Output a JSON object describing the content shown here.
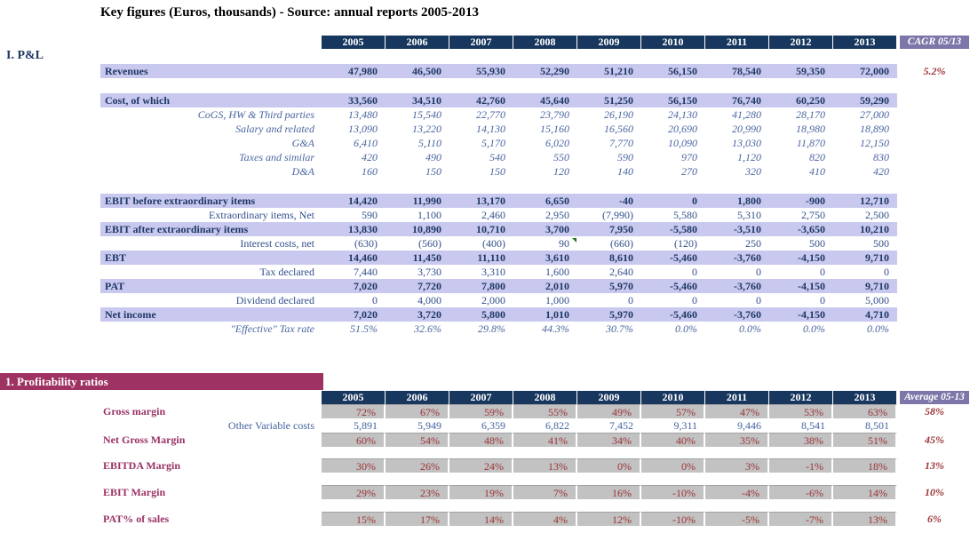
{
  "title": "Key figures (Euros, thousands) - Source: annual reports 2005-2013",
  "pnl": {
    "section_label": "I. P&L",
    "years": [
      "2005",
      "2006",
      "2007",
      "2008",
      "2009",
      "2010",
      "2011",
      "2012",
      "2013"
    ],
    "cagr_header": "CAGR 05/13",
    "rows": [
      {
        "type": "spacer",
        "h": 17
      },
      {
        "label": "Revenues",
        "type": "total",
        "values": [
          "47,980",
          "46,500",
          "55,930",
          "52,290",
          "51,210",
          "56,150",
          "78,540",
          "59,350",
          "72,000"
        ],
        "cagr": "5.2%"
      },
      {
        "type": "spacer",
        "h": 17
      },
      {
        "label": "Cost, of which",
        "type": "total",
        "values": [
          "33,560",
          "34,510",
          "42,760",
          "45,640",
          "51,250",
          "56,150",
          "76,740",
          "60,250",
          "59,290"
        ]
      },
      {
        "label": "CoGS, HW & Third parties",
        "type": "sub_italic",
        "values": [
          "13,480",
          "15,540",
          "22,770",
          "23,790",
          "26,190",
          "24,130",
          "41,280",
          "28,170",
          "27,000"
        ]
      },
      {
        "label": "Salary and related",
        "type": "sub_italic",
        "values": [
          "13,090",
          "13,220",
          "14,130",
          "15,160",
          "16,560",
          "20,690",
          "20,990",
          "18,980",
          "18,890"
        ]
      },
      {
        "label": "G&A",
        "type": "sub_italic",
        "values": [
          "6,410",
          "5,110",
          "5,170",
          "6,020",
          "7,770",
          "10,090",
          "13,030",
          "11,870",
          "12,150"
        ]
      },
      {
        "label": "Taxes and similar",
        "type": "sub_italic",
        "values": [
          "420",
          "490",
          "540",
          "550",
          "590",
          "970",
          "1,120",
          "820",
          "830"
        ]
      },
      {
        "label": "D&A",
        "type": "sub_italic",
        "values": [
          "160",
          "150",
          "150",
          "120",
          "140",
          "270",
          "320",
          "410",
          "420"
        ]
      },
      {
        "type": "spacer",
        "h": 17
      },
      {
        "label": "EBIT before extraordinary items",
        "type": "total",
        "values": [
          "14,420",
          "11,990",
          "13,170",
          "6,650",
          "-40",
          "0",
          "1,800",
          "-900",
          "12,710"
        ]
      },
      {
        "label": "Extraordinary items, Net",
        "type": "sub",
        "values": [
          "590",
          "1,100",
          "2,460",
          "2,950",
          "(7,990)",
          "5,580",
          "5,310",
          "2,750",
          "2,500"
        ]
      },
      {
        "label": "EBIT after extraordinary items",
        "type": "total",
        "values": [
          "13,830",
          "10,890",
          "10,710",
          "3,700",
          "7,950",
          "-5,580",
          "-3,510",
          "-3,650",
          "10,210"
        ]
      },
      {
        "label": "Interest costs, net",
        "type": "sub",
        "values": [
          "(630)",
          "(560)",
          "(400)",
          "90",
          "(660)",
          "(120)",
          "250",
          "500",
          "500"
        ],
        "marker_col": 3
      },
      {
        "label": "EBT",
        "type": "total",
        "values": [
          "14,460",
          "11,450",
          "11,110",
          "3,610",
          "8,610",
          "-5,460",
          "-3,760",
          "-4,150",
          "9,710"
        ]
      },
      {
        "label": "Tax declared",
        "type": "sub",
        "values": [
          "7,440",
          "3,730",
          "3,310",
          "1,600",
          "2,640",
          "0",
          "0",
          "0",
          "0"
        ]
      },
      {
        "label": "PAT",
        "type": "total",
        "values": [
          "7,020",
          "7,720",
          "7,800",
          "2,010",
          "5,970",
          "-5,460",
          "-3,760",
          "-4,150",
          "9,710"
        ]
      },
      {
        "label": "Dividend declared",
        "type": "sub",
        "values": [
          "0",
          "4,000",
          "2,000",
          "1,000",
          "0",
          "0",
          "0",
          "0",
          "5,000"
        ]
      },
      {
        "label": "Net income",
        "type": "total",
        "values": [
          "7,020",
          "3,720",
          "5,800",
          "1,010",
          "5,970",
          "-5,460",
          "-3,760",
          "-4,150",
          "4,710"
        ]
      },
      {
        "label": "\"Effective\" Tax rate",
        "type": "sub_italic",
        "values": [
          "51.5%",
          "32.6%",
          "29.8%",
          "44.3%",
          "30.7%",
          "0.0%",
          "0.0%",
          "0.0%",
          "0.0%"
        ]
      }
    ]
  },
  "ratios": {
    "section_header": "1. Profitability ratios",
    "years": [
      "2005",
      "2006",
      "2007",
      "2008",
      "2009",
      "2010",
      "2011",
      "2012",
      "2013"
    ],
    "avg_header": "Average 05-13",
    "rows": [
      {
        "label": "Gross margin",
        "type": "ratio",
        "values": [
          "72%",
          "67%",
          "59%",
          "55%",
          "49%",
          "57%",
          "47%",
          "53%",
          "63%"
        ],
        "avg": "58%"
      },
      {
        "label": "Other Variable costs",
        "type": "plain",
        "values": [
          "5,891",
          "5,949",
          "6,359",
          "6,822",
          "7,452",
          "9,311",
          "9,446",
          "8,541",
          "8,501"
        ]
      },
      {
        "label": "Net Gross Margin",
        "type": "ratio",
        "values": [
          "60%",
          "54%",
          "48%",
          "41%",
          "34%",
          "40%",
          "35%",
          "38%",
          "51%"
        ],
        "avg": "45%"
      },
      {
        "type": "spacer",
        "h": 13
      },
      {
        "label": "EBITDA Margin",
        "type": "ratio",
        "values": [
          "30%",
          "26%",
          "24%",
          "13%",
          "0%",
          "0%",
          "3%",
          "-1%",
          "18%"
        ],
        "avg": "13%"
      },
      {
        "type": "spacer",
        "h": 14
      },
      {
        "label": "EBIT Margin",
        "type": "ratio",
        "values": [
          "29%",
          "23%",
          "19%",
          "7%",
          "16%",
          "-10%",
          "-4%",
          "-6%",
          "14%"
        ],
        "avg": "10%"
      },
      {
        "type": "spacer",
        "h": 14
      },
      {
        "label": "PAT% of sales",
        "type": "ratio",
        "values": [
          "15%",
          "17%",
          "14%",
          "4%",
          "12%",
          "-10%",
          "-5%",
          "-7%",
          "13%"
        ],
        "avg": "6%"
      }
    ]
  },
  "colors": {
    "header_navy": "#17375E",
    "row_lavender": "#C9C9F0",
    "agg_purple": "#7C76A9",
    "value_dark_red": "#9B3438",
    "section_maroon": "#9E3263",
    "ratio_cell_gray": "#C2C2C2",
    "comment_marker_green": "#217A21"
  }
}
